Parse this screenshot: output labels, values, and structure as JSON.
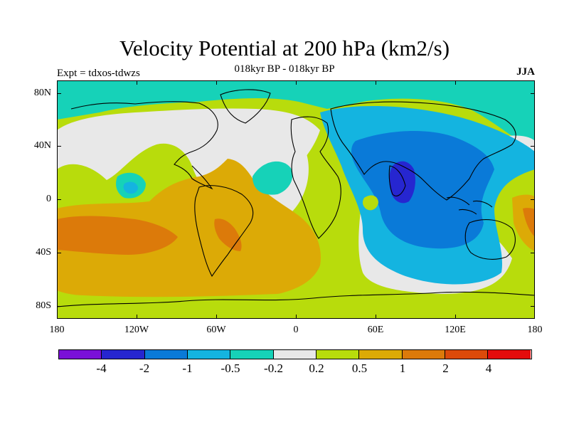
{
  "figure": {
    "title": "Velocity Potential at 200 hPa (km2/s)",
    "subtitle": "018kyr BP - 018kyr BP",
    "experiment": "Expt = tdxos-tdwzs",
    "season": "JJA"
  },
  "axes": {
    "lat_labels": [
      "80N",
      "40N",
      "0",
      "40S",
      "80S"
    ],
    "lon_labels": [
      "180",
      "120W",
      "60W",
      "0",
      "60E",
      "120E",
      "180"
    ]
  },
  "colorbar": {
    "labels": [
      "-4",
      "-2",
      "-1",
      "-0.5",
      "-0.2",
      "0.2",
      "0.5",
      "1",
      "2",
      "4"
    ],
    "colors": [
      "#7a10d8",
      "#2626d0",
      "#0a7ad8",
      "#14b4e0",
      "#16d2b8",
      "#e8e8e8",
      "#b8dc0c",
      "#dcaa06",
      "#dc7a0a",
      "#dc4a0a",
      "#e40c0c"
    ]
  },
  "palette": {
    "ocean_base": "#b8dc0c",
    "coast_line": "#000000"
  }
}
